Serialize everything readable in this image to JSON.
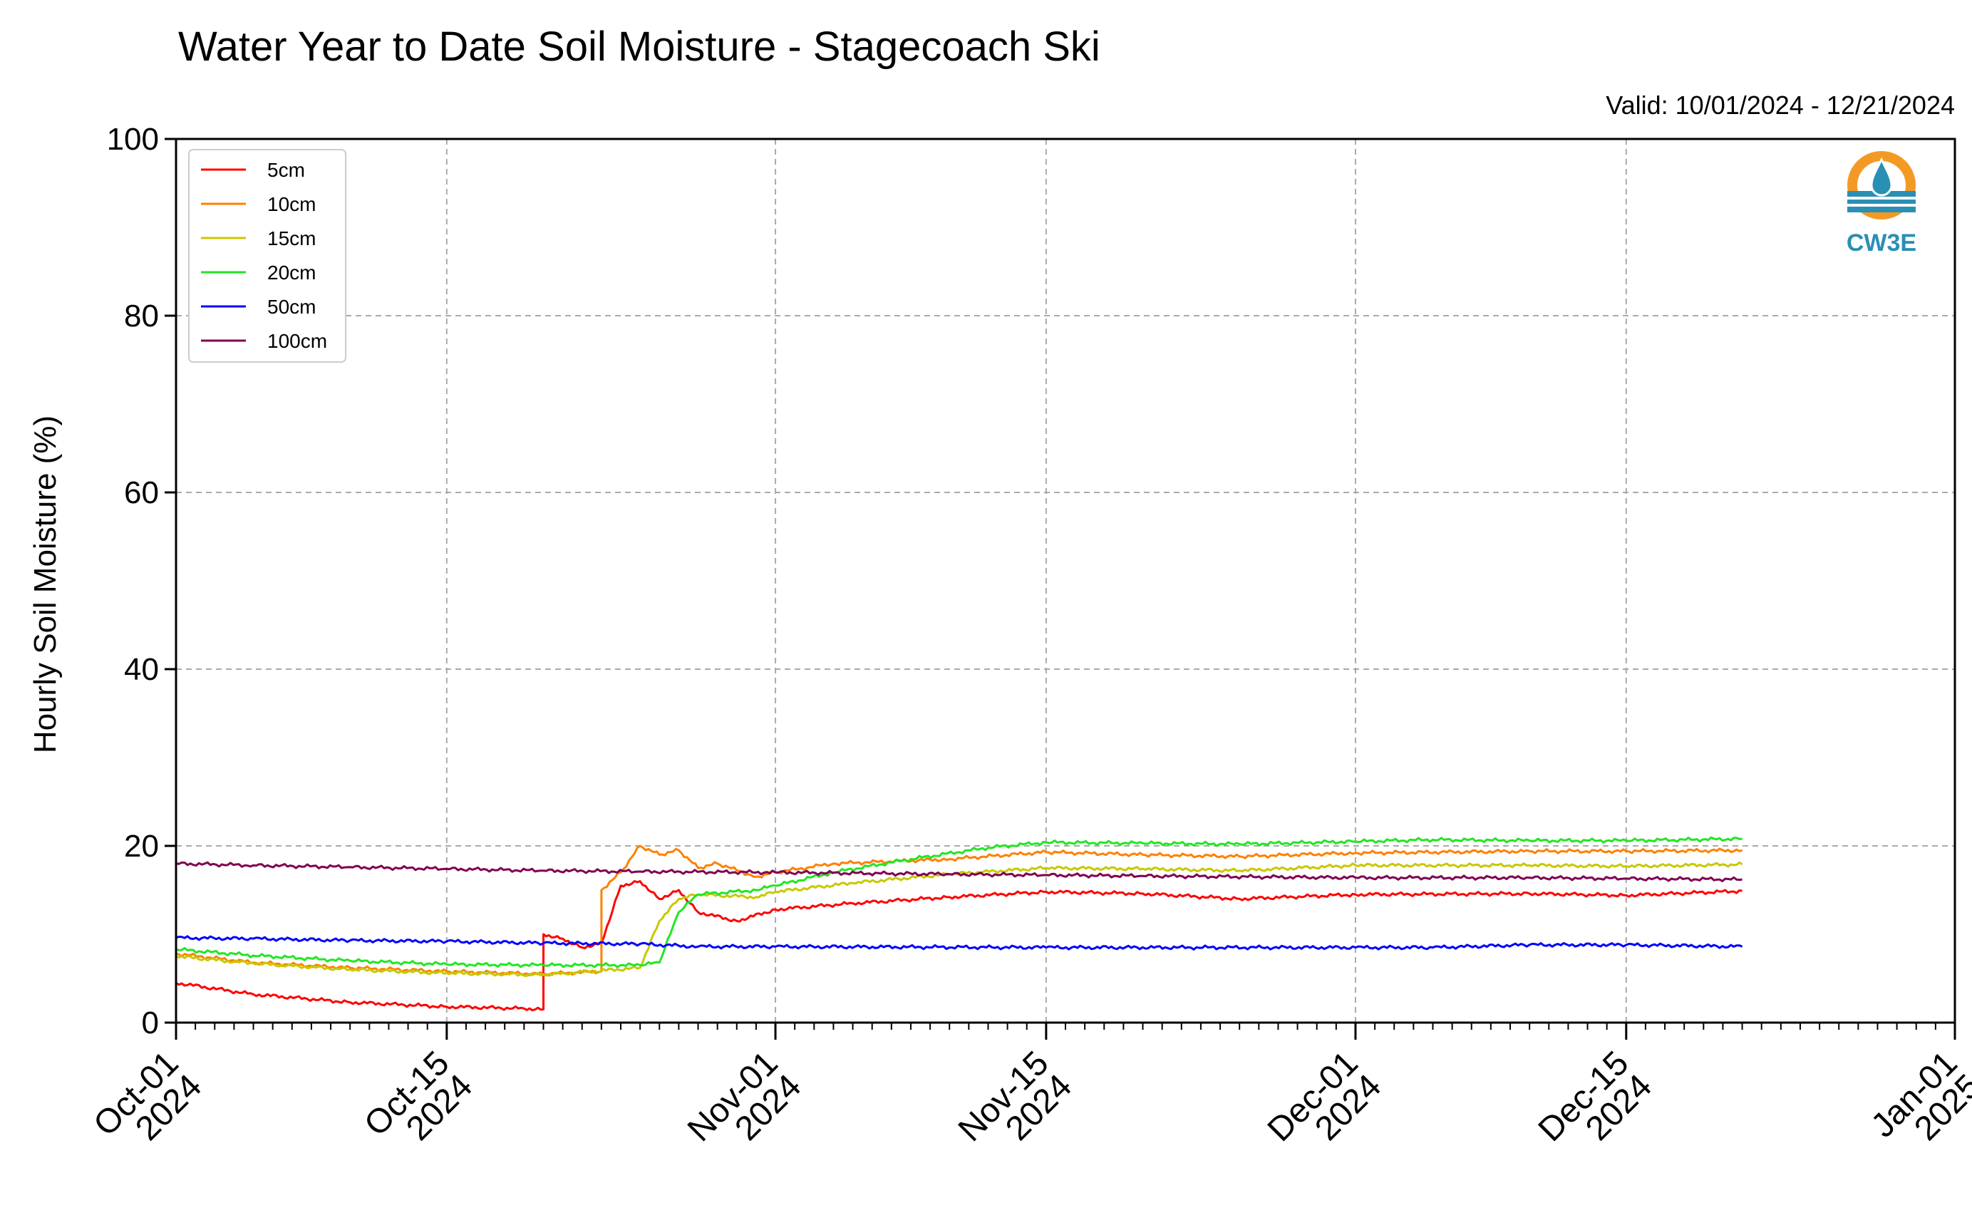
{
  "chart_data": {
    "type": "line",
    "title": "Water Year to Date Soil Moisture - Stagecoach Ski",
    "valid_text": "Valid: 10/01/2024 - 12/21/2024",
    "ylabel": "Hourly Soil Moisture (%)",
    "xlabel": "",
    "ylim": [
      0,
      100
    ],
    "yticks": [
      "0",
      "20",
      "40",
      "60",
      "80",
      "100"
    ],
    "xlim": [
      "2024-10-01",
      "2025-01-01"
    ],
    "xticks": [
      {
        "date": "2024-10-01",
        "line1": "Oct-01",
        "line2": "2024"
      },
      {
        "date": "2024-10-15",
        "line1": "Oct-15",
        "line2": "2024"
      },
      {
        "date": "2024-11-01",
        "line1": "Nov-01",
        "line2": "2024"
      },
      {
        "date": "2024-11-15",
        "line1": "Nov-15",
        "line2": "2024"
      },
      {
        "date": "2024-12-01",
        "line1": "Dec-01",
        "line2": "2024"
      },
      {
        "date": "2024-12-15",
        "line1": "Dec-15",
        "line2": "2024"
      },
      {
        "date": "2025-01-01",
        "line1": "Jan-01",
        "line2": "2025"
      }
    ],
    "grid": true,
    "legend_position": "top-left",
    "logo_text": "CW3E",
    "series": [
      {
        "name": "5cm",
        "color": "#ff0000",
        "points": [
          [
            "2024-10-01",
            4.5
          ],
          [
            "2024-10-05",
            3.2
          ],
          [
            "2024-10-10",
            2.3
          ],
          [
            "2024-10-15",
            1.8
          ],
          [
            "2024-10-19",
            1.6
          ],
          [
            "2024-10-20",
            1.5
          ],
          [
            "2024-10-20",
            10.0
          ],
          [
            "2024-10-21",
            9.5
          ],
          [
            "2024-10-22",
            8.5
          ],
          [
            "2024-10-23",
            9.0
          ],
          [
            "2024-10-24",
            15.5
          ],
          [
            "2024-10-25",
            16.0
          ],
          [
            "2024-10-26",
            14.0
          ],
          [
            "2024-10-27",
            15.0
          ],
          [
            "2024-10-28",
            12.5
          ],
          [
            "2024-10-30",
            11.5
          ],
          [
            "2024-11-01",
            12.8
          ],
          [
            "2024-11-05",
            13.5
          ],
          [
            "2024-11-10",
            14.2
          ],
          [
            "2024-11-15",
            14.8
          ],
          [
            "2024-11-20",
            14.6
          ],
          [
            "2024-11-25",
            14.0
          ],
          [
            "2024-12-01",
            14.5
          ],
          [
            "2024-12-10",
            14.6
          ],
          [
            "2024-12-15",
            14.4
          ],
          [
            "2024-12-21",
            14.9
          ]
        ]
      },
      {
        "name": "10cm",
        "color": "#ff8000",
        "points": [
          [
            "2024-10-01",
            7.8
          ],
          [
            "2024-10-05",
            6.8
          ],
          [
            "2024-10-10",
            6.2
          ],
          [
            "2024-10-15",
            5.8
          ],
          [
            "2024-10-20",
            5.5
          ],
          [
            "2024-10-23",
            5.8
          ],
          [
            "2024-10-23",
            15.0
          ],
          [
            "2024-10-24",
            17.0
          ],
          [
            "2024-10-25",
            20.0
          ],
          [
            "2024-10-26",
            19.0
          ],
          [
            "2024-10-27",
            19.5
          ],
          [
            "2024-10-28",
            17.5
          ],
          [
            "2024-10-29",
            18.0
          ],
          [
            "2024-10-31",
            16.5
          ],
          [
            "2024-11-01",
            17.0
          ],
          [
            "2024-11-04",
            18.0
          ],
          [
            "2024-11-10",
            18.5
          ],
          [
            "2024-11-15",
            19.3
          ],
          [
            "2024-11-20",
            19.0
          ],
          [
            "2024-11-25",
            18.8
          ],
          [
            "2024-12-01",
            19.2
          ],
          [
            "2024-12-10",
            19.4
          ],
          [
            "2024-12-15",
            19.4
          ],
          [
            "2024-12-21",
            19.5
          ]
        ]
      },
      {
        "name": "15cm",
        "color": "#c8c800",
        "points": [
          [
            "2024-10-01",
            7.5
          ],
          [
            "2024-10-05",
            6.7
          ],
          [
            "2024-10-10",
            6.0
          ],
          [
            "2024-10-15",
            5.6
          ],
          [
            "2024-10-20",
            5.4
          ],
          [
            "2024-10-25",
            6.2
          ],
          [
            "2024-10-26",
            11.5
          ],
          [
            "2024-10-27",
            14.0
          ],
          [
            "2024-10-28",
            14.5
          ],
          [
            "2024-10-31",
            14.2
          ],
          [
            "2024-11-01",
            14.8
          ],
          [
            "2024-11-05",
            15.8
          ],
          [
            "2024-11-10",
            16.8
          ],
          [
            "2024-11-15",
            17.5
          ],
          [
            "2024-11-20",
            17.4
          ],
          [
            "2024-11-25",
            17.2
          ],
          [
            "2024-12-01",
            17.8
          ],
          [
            "2024-12-10",
            17.8
          ],
          [
            "2024-12-15",
            17.7
          ],
          [
            "2024-12-21",
            17.9
          ]
        ]
      },
      {
        "name": "20cm",
        "color": "#22e622",
        "points": [
          [
            "2024-10-01",
            8.3
          ],
          [
            "2024-10-05",
            7.6
          ],
          [
            "2024-10-10",
            7.0
          ],
          [
            "2024-10-15",
            6.6
          ],
          [
            "2024-10-20",
            6.5
          ],
          [
            "2024-10-25",
            6.5
          ],
          [
            "2024-10-26",
            6.8
          ],
          [
            "2024-10-27",
            12.5
          ],
          [
            "2024-10-28",
            14.5
          ],
          [
            "2024-10-31",
            15.0
          ],
          [
            "2024-11-01",
            15.5
          ],
          [
            "2024-11-04",
            17.0
          ],
          [
            "2024-11-08",
            18.5
          ],
          [
            "2024-11-12",
            19.8
          ],
          [
            "2024-11-15",
            20.4
          ],
          [
            "2024-11-20",
            20.3
          ],
          [
            "2024-11-25",
            20.2
          ],
          [
            "2024-12-01",
            20.5
          ],
          [
            "2024-12-05",
            20.7
          ],
          [
            "2024-12-10",
            20.6
          ],
          [
            "2024-12-15",
            20.6
          ],
          [
            "2024-12-21",
            20.8
          ]
        ]
      },
      {
        "name": "50cm",
        "color": "#0000ff",
        "points": [
          [
            "2024-10-01",
            9.6
          ],
          [
            "2024-10-05",
            9.5
          ],
          [
            "2024-10-10",
            9.3
          ],
          [
            "2024-10-15",
            9.2
          ],
          [
            "2024-10-20",
            9.0
          ],
          [
            "2024-10-25",
            8.9
          ],
          [
            "2024-10-28",
            8.6
          ],
          [
            "2024-11-01",
            8.6
          ],
          [
            "2024-11-15",
            8.5
          ],
          [
            "2024-12-01",
            8.5
          ],
          [
            "2024-12-05",
            8.5
          ],
          [
            "2024-12-10",
            8.8
          ],
          [
            "2024-12-15",
            8.8
          ],
          [
            "2024-12-21",
            8.6
          ]
        ]
      },
      {
        "name": "100cm",
        "color": "#800050",
        "points": [
          [
            "2024-10-01",
            18.0
          ],
          [
            "2024-10-05",
            17.8
          ],
          [
            "2024-10-10",
            17.6
          ],
          [
            "2024-10-15",
            17.4
          ],
          [
            "2024-10-20",
            17.2
          ],
          [
            "2024-10-25",
            17.1
          ],
          [
            "2024-11-01",
            17.0
          ],
          [
            "2024-11-10",
            16.8
          ],
          [
            "2024-11-15",
            16.7
          ],
          [
            "2024-11-20",
            16.6
          ],
          [
            "2024-12-01",
            16.4
          ],
          [
            "2024-12-10",
            16.4
          ],
          [
            "2024-12-15",
            16.3
          ],
          [
            "2024-12-21",
            16.2
          ]
        ]
      }
    ]
  }
}
